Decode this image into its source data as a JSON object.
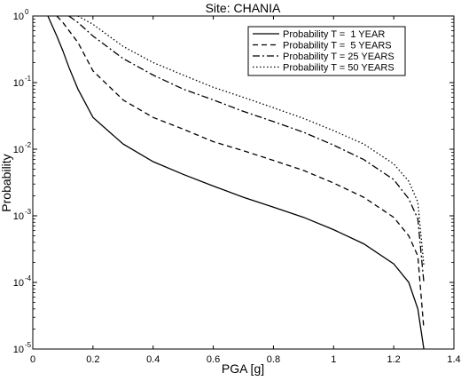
{
  "chart_data": {
    "type": "line",
    "title": "Site: CHANIA",
    "xlabel": "PGA [g]",
    "ylabel": "Probability",
    "xlim": [
      0,
      1.4
    ],
    "ylim": [
      1e-05,
      1
    ],
    "yscale": "log",
    "grid": false,
    "legend_position": "top-right",
    "x_ticks": [
      0,
      0.2,
      0.4,
      0.6,
      0.8,
      1,
      1.2,
      1.4
    ],
    "x_tick_labels": [
      "0",
      "0.2",
      "0.4",
      "0.6",
      "0.8",
      "1",
      "1.2",
      "1.4"
    ],
    "y_ticks": [
      1e-05,
      0.0001,
      0.001,
      0.01,
      0.1,
      1
    ],
    "y_tick_labels": [
      {
        "base": "10",
        "exp": "-5"
      },
      {
        "base": "10",
        "exp": "-4"
      },
      {
        "base": "10",
        "exp": "-3"
      },
      {
        "base": "10",
        "exp": "-2"
      },
      {
        "base": "10",
        "exp": "-1"
      },
      {
        "base": "10",
        "exp": "0"
      }
    ],
    "series": [
      {
        "name": "Probability T =  1 YEAR",
        "dash": "solid",
        "x": [
          0.05,
          0.08,
          0.1,
          0.12,
          0.15,
          0.2,
          0.3,
          0.4,
          0.5,
          0.6,
          0.7,
          0.8,
          0.9,
          1.0,
          1.1,
          1.2,
          1.25,
          1.28,
          1.3
        ],
        "y": [
          1.0,
          0.5,
          0.3,
          0.17,
          0.08,
          0.03,
          0.012,
          0.0065,
          0.0042,
          0.0028,
          0.0019,
          0.00135,
          0.00095,
          0.00062,
          0.00038,
          0.00019,
          0.0001,
          4e-05,
          1e-05
        ]
      },
      {
        "name": "Probability T =  5 YEARS",
        "dash": "dashed",
        "x": [
          0.08,
          0.1,
          0.15,
          0.2,
          0.3,
          0.4,
          0.5,
          0.6,
          0.7,
          0.8,
          0.9,
          1.0,
          1.1,
          1.2,
          1.25,
          1.28,
          1.3
        ],
        "y": [
          1.0,
          0.8,
          0.4,
          0.15,
          0.055,
          0.03,
          0.02,
          0.013,
          0.0095,
          0.0068,
          0.0048,
          0.0031,
          0.0019,
          0.00095,
          0.0005,
          0.00025,
          2e-05
        ]
      },
      {
        "name": "Probability T = 25 YEARS",
        "dash": "dashdot",
        "x": [
          0.12,
          0.15,
          0.2,
          0.3,
          0.4,
          0.5,
          0.6,
          0.7,
          0.8,
          0.9,
          1.0,
          1.1,
          1.2,
          1.25,
          1.28,
          1.3
        ],
        "y": [
          1.0,
          0.8,
          0.5,
          0.23,
          0.13,
          0.08,
          0.055,
          0.037,
          0.026,
          0.018,
          0.0115,
          0.007,
          0.0035,
          0.0018,
          0.0009,
          0.0001
        ]
      },
      {
        "name": "Probability T = 50 YEARS",
        "dash": "dotted",
        "x": [
          0.15,
          0.2,
          0.3,
          0.4,
          0.5,
          0.6,
          0.7,
          0.8,
          0.9,
          1.0,
          1.1,
          1.2,
          1.25,
          1.28,
          1.3
        ],
        "y": [
          1.0,
          0.75,
          0.35,
          0.2,
          0.13,
          0.085,
          0.06,
          0.042,
          0.029,
          0.019,
          0.012,
          0.006,
          0.0033,
          0.0016,
          0.00018
        ]
      }
    ]
  }
}
